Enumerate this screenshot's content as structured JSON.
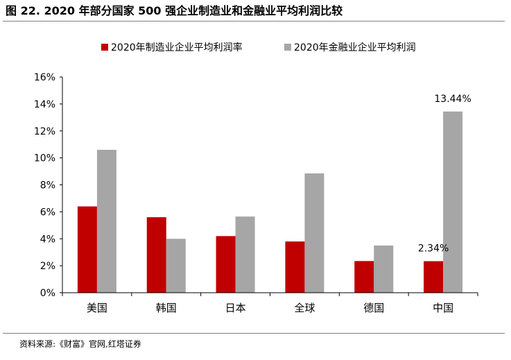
{
  "title": "图 22. 2020 年部分国家 500 强企业制造业和金融业平均利润比较",
  "source": "资料来源:《财富》官网,红塔证券",
  "colors": {
    "series_1": "#c00000",
    "series_2": "#a6a6a6"
  },
  "chart_data": {
    "type": "bar",
    "categories": [
      "美国",
      "韩国",
      "日本",
      "全球",
      "德国",
      "中国"
    ],
    "series": [
      {
        "name": "2020年制造业企业平均利润率",
        "values": [
          6.4,
          5.6,
          4.2,
          3.8,
          2.35,
          2.34
        ]
      },
      {
        "name": "2020年金融业企业平均利润",
        "values": [
          10.6,
          4.0,
          5.65,
          8.85,
          3.5,
          13.44
        ]
      }
    ],
    "yticks": [
      "0%",
      "2%",
      "4%",
      "6%",
      "8%",
      "10%",
      "12%",
      "14%",
      "16%"
    ],
    "ylim": [
      0,
      16
    ],
    "data_labels": [
      {
        "series": 0,
        "category": 5,
        "text": "2.34%"
      },
      {
        "series": 1,
        "category": 5,
        "text": "13.44%"
      }
    ],
    "legend_position": "top",
    "grid": false
  }
}
